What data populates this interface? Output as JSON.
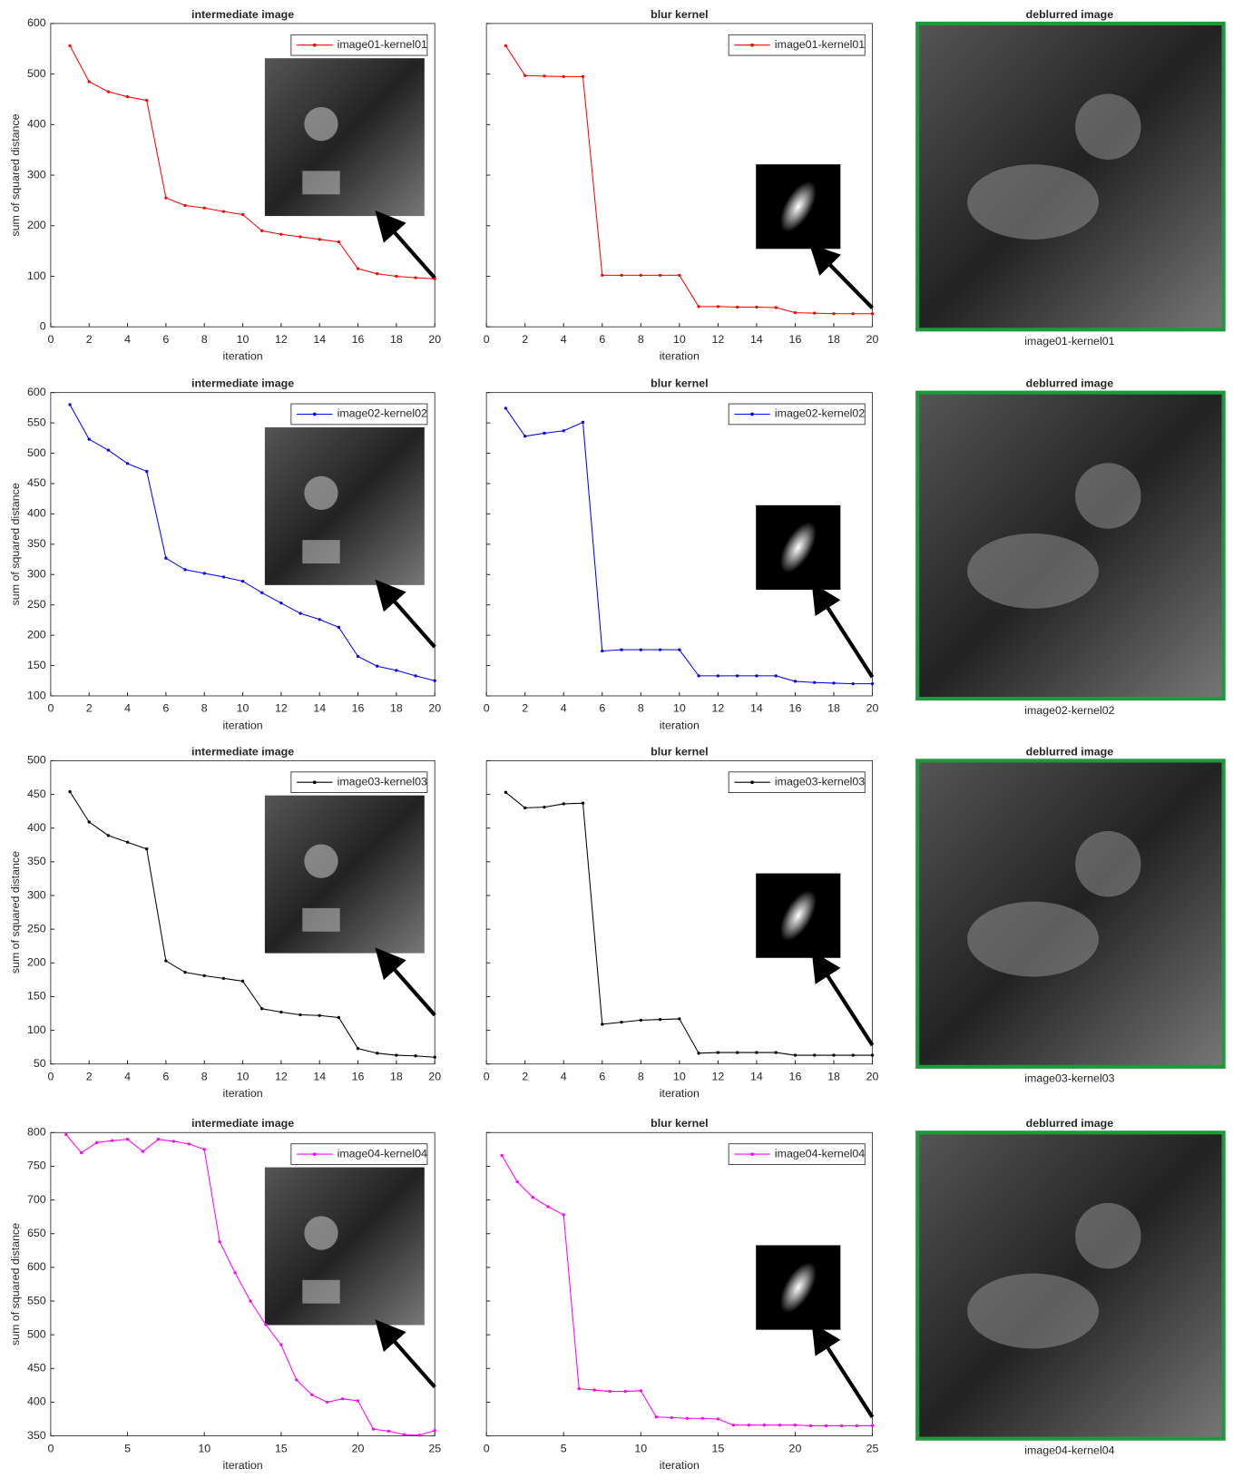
{
  "chart_data": [
    {
      "type": "line",
      "title": "intermediate image",
      "xlabel": "iteration",
      "ylabel": "sum of squared distance",
      "x": [
        1,
        2,
        3,
        4,
        5,
        6,
        7,
        8,
        9,
        10,
        11,
        12,
        13,
        14,
        15,
        16,
        17,
        18,
        19,
        20
      ],
      "xlim": [
        0,
        20
      ],
      "xticks": [
        0,
        2,
        4,
        6,
        8,
        10,
        12,
        14,
        16,
        18,
        20
      ],
      "ylim": [
        0,
        600
      ],
      "yticks": [
        0,
        100,
        200,
        300,
        400,
        500,
        600
      ],
      "ytick_labels": true,
      "series": [
        {
          "name": "image01-kernel01",
          "color": "#ff0000",
          "values": [
            556,
            485,
            465,
            455,
            448,
            255,
            240,
            235,
            228,
            222,
            190,
            183,
            178,
            173,
            168,
            115,
            105,
            100,
            97,
            95
          ]
        }
      ]
    },
    {
      "type": "line",
      "title": "blur kernel",
      "xlabel": "iteration",
      "x": [
        1,
        2,
        3,
        4,
        5,
        6,
        7,
        8,
        9,
        10,
        11,
        12,
        13,
        14,
        15,
        16,
        17,
        18,
        19,
        20
      ],
      "xlim": [
        0,
        20
      ],
      "xticks": [
        0,
        2,
        4,
        6,
        8,
        10,
        12,
        14,
        16,
        18,
        20
      ],
      "ylim": [
        0,
        600
      ],
      "yticks": [
        0,
        100,
        200,
        300,
        400,
        500,
        600
      ],
      "ytick_labels": false,
      "series": [
        {
          "name": "image01-kernel01",
          "color": "#ff0000",
          "values": [
            556,
            497,
            496,
            495,
            495,
            102,
            102,
            102,
            102,
            102,
            40,
            40,
            39,
            39,
            38,
            28,
            27,
            26,
            26,
            26
          ]
        }
      ]
    },
    {
      "type": "line",
      "title": "intermediate image",
      "xlabel": "iteration",
      "ylabel": "sum of squared distance",
      "x": [
        1,
        2,
        3,
        4,
        5,
        6,
        7,
        8,
        9,
        10,
        11,
        12,
        13,
        14,
        15,
        16,
        17,
        18,
        19,
        20
      ],
      "xlim": [
        0,
        20
      ],
      "xticks": [
        0,
        2,
        4,
        6,
        8,
        10,
        12,
        14,
        16,
        18,
        20
      ],
      "ylim": [
        100,
        600
      ],
      "yticks": [
        100,
        150,
        200,
        250,
        300,
        350,
        400,
        450,
        500,
        550,
        600
      ],
      "ytick_labels": true,
      "series": [
        {
          "name": "image02-kernel02",
          "color": "#0000ff",
          "values": [
            580,
            523,
            505,
            483,
            470,
            327,
            308,
            302,
            296,
            289,
            270,
            253,
            236,
            226,
            213,
            165,
            149,
            142,
            133,
            125
          ]
        }
      ]
    },
    {
      "type": "line",
      "title": "blur kernel",
      "xlabel": "iteration",
      "x": [
        1,
        2,
        3,
        4,
        5,
        6,
        7,
        8,
        9,
        10,
        11,
        12,
        13,
        14,
        15,
        16,
        17,
        18,
        19,
        20
      ],
      "xlim": [
        0,
        20
      ],
      "xticks": [
        0,
        2,
        4,
        6,
        8,
        10,
        12,
        14,
        16,
        18,
        20
      ],
      "ylim": [
        100,
        600
      ],
      "yticks": [
        100,
        150,
        200,
        250,
        300,
        350,
        400,
        450,
        500,
        550,
        600
      ],
      "ytick_labels": false,
      "series": [
        {
          "name": "image02-kernel02",
          "color": "#0000ff",
          "values": [
            574,
            528,
            533,
            537,
            551,
            174,
            176,
            176,
            176,
            176,
            133,
            133,
            133,
            133,
            133,
            124,
            122,
            121,
            120,
            120
          ]
        }
      ]
    },
    {
      "type": "line",
      "title": "intermediate image",
      "xlabel": "iteration",
      "ylabel": "sum of squared distance",
      "x": [
        1,
        2,
        3,
        4,
        5,
        6,
        7,
        8,
        9,
        10,
        11,
        12,
        13,
        14,
        15,
        16,
        17,
        18,
        19,
        20
      ],
      "xlim": [
        0,
        20
      ],
      "xticks": [
        0,
        2,
        4,
        6,
        8,
        10,
        12,
        14,
        16,
        18,
        20
      ],
      "ylim": [
        50,
        500
      ],
      "yticks": [
        50,
        100,
        150,
        200,
        250,
        300,
        350,
        400,
        450,
        500
      ],
      "ytick_labels": true,
      "series": [
        {
          "name": "image03-kernel03",
          "color": "#000000",
          "values": [
            454,
            409,
            389,
            379,
            369,
            203,
            186,
            181,
            177,
            173,
            132,
            127,
            123,
            122,
            119,
            73,
            66,
            63,
            62,
            60
          ]
        }
      ]
    },
    {
      "type": "line",
      "title": "blur kernel",
      "xlabel": "iteration",
      "x": [
        1,
        2,
        3,
        4,
        5,
        6,
        7,
        8,
        9,
        10,
        11,
        12,
        13,
        14,
        15,
        16,
        17,
        18,
        19,
        20
      ],
      "xlim": [
        0,
        20
      ],
      "xticks": [
        0,
        2,
        4,
        6,
        8,
        10,
        12,
        14,
        16,
        18,
        20
      ],
      "ylim": [
        50,
        500
      ],
      "yticks": [
        50,
        100,
        150,
        200,
        250,
        300,
        350,
        400,
        450,
        500
      ],
      "ytick_labels": false,
      "series": [
        {
          "name": "image03-kernel03",
          "color": "#000000",
          "values": [
            453,
            430,
            431,
            436,
            437,
            109,
            112,
            115,
            116,
            117,
            66,
            67,
            67,
            67,
            67,
            63,
            63,
            63,
            63,
            63
          ]
        }
      ]
    },
    {
      "type": "line",
      "title": "intermediate image",
      "xlabel": "iteration",
      "ylabel": "sum of squared distance",
      "x": [
        1,
        2,
        3,
        4,
        5,
        6,
        7,
        8,
        9,
        10,
        11,
        12,
        13,
        14,
        15,
        16,
        17,
        18,
        19,
        20,
        21,
        22,
        23,
        24,
        25
      ],
      "xlim": [
        0,
        25
      ],
      "xticks": [
        0,
        5,
        10,
        15,
        20,
        25
      ],
      "ylim": [
        350,
        800
      ],
      "yticks": [
        350,
        400,
        450,
        500,
        550,
        600,
        650,
        700,
        750,
        800
      ],
      "ytick_labels": true,
      "series": [
        {
          "name": "image04-kernel04",
          "color": "#ff00ff",
          "values": [
            797,
            770,
            785,
            788,
            790,
            772,
            790,
            787,
            783,
            775,
            638,
            592,
            550,
            515,
            485,
            433,
            411,
            400,
            405,
            402,
            360,
            357,
            352,
            351,
            358
          ]
        }
      ]
    },
    {
      "type": "line",
      "title": "blur kernel",
      "xlabel": "iteration",
      "x": [
        1,
        2,
        3,
        4,
        5,
        6,
        7,
        8,
        9,
        10,
        11,
        12,
        13,
        14,
        15,
        16,
        17,
        18,
        19,
        20,
        21,
        22,
        23,
        24,
        25
      ],
      "xlim": [
        0,
        25
      ],
      "xticks": [
        0,
        5,
        10,
        15,
        20,
        25
      ],
      "ylim": [
        350,
        800
      ],
      "yticks": [
        350,
        400,
        450,
        500,
        550,
        600,
        650,
        700,
        750,
        800
      ],
      "ytick_labels": false,
      "series": [
        {
          "name": "image04-kernel04",
          "color": "#ff00ff",
          "values": [
            766,
            727,
            704,
            690,
            678,
            420,
            418,
            416,
            416,
            417,
            378,
            377,
            376,
            376,
            375,
            366,
            366,
            366,
            366,
            366,
            365,
            365,
            365,
            365,
            365
          ]
        }
      ]
    }
  ],
  "images": [
    {
      "title": "deblurred image",
      "caption": "image01-kernel01"
    },
    {
      "title": "deblurred image",
      "caption": "image02-kernel02"
    },
    {
      "title": "deblurred image",
      "caption": "image03-kernel03"
    },
    {
      "title": "deblurred image",
      "caption": "image04-kernel04"
    }
  ]
}
